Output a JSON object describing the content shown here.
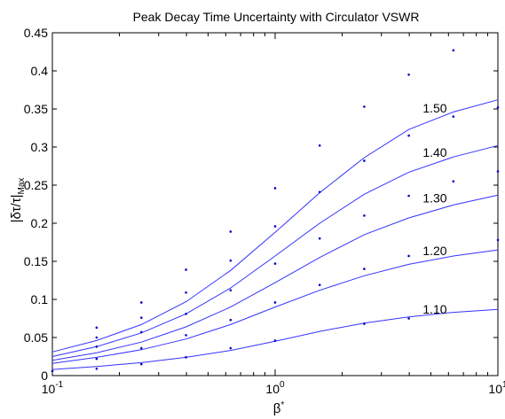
{
  "chart_data": {
    "type": "line",
    "title": "Peak Decay Time Uncertainty with Circulator VSWR",
    "xlabel": "β",
    "xlabel_sup": "*",
    "ylabel": "|δτ/τ|",
    "ylabel_sub": "Max",
    "x_scale": "log",
    "xlim": [
      0.1,
      10
    ],
    "ylim": [
      0,
      0.45
    ],
    "grid": false,
    "x_ticks": [
      {
        "value": 0.1,
        "base": "10",
        "exp": "-1"
      },
      {
        "value": 1,
        "base": "10",
        "exp": "0"
      },
      {
        "value": 10,
        "base": "10",
        "exp": "1"
      }
    ],
    "y_ticks": [
      "0",
      "0.05",
      "0.1",
      "0.15",
      "0.2",
      "0.25",
      "0.3",
      "0.35",
      "0.4",
      "0.45"
    ],
    "line_color": "#3333ff",
    "marker_color": "#0000cc",
    "x": [
      0.1,
      0.158,
      0.251,
      0.398,
      0.631,
      1.0,
      1.585,
      2.512,
      3.981,
      6.31,
      10.0
    ],
    "series": [
      {
        "name": "1.10",
        "values": [
          0.008,
          0.012,
          0.017,
          0.024,
          0.033,
          0.045,
          0.058,
          0.069,
          0.077,
          0.083,
          0.087
        ]
      },
      {
        "name": "1.20",
        "values": [
          0.016,
          0.024,
          0.034,
          0.048,
          0.067,
          0.09,
          0.112,
          0.131,
          0.146,
          0.157,
          0.165
        ]
      },
      {
        "name": "1.30",
        "values": [
          0.02,
          0.03,
          0.044,
          0.064,
          0.09,
          0.122,
          0.155,
          0.185,
          0.207,
          0.224,
          0.237
        ]
      },
      {
        "name": "1.40",
        "values": [
          0.025,
          0.038,
          0.056,
          0.081,
          0.115,
          0.157,
          0.2,
          0.238,
          0.267,
          0.287,
          0.302
        ]
      },
      {
        "name": "1.50",
        "values": [
          0.031,
          0.046,
          0.067,
          0.097,
          0.138,
          0.188,
          0.24,
          0.286,
          0.323,
          0.346,
          0.362
        ]
      }
    ],
    "markers": [
      {
        "x": 0.1,
        "y": 0.006
      },
      {
        "x": 0.158,
        "y": 0.009
      },
      {
        "x": 0.251,
        "y": 0.015
      },
      {
        "x": 0.398,
        "y": 0.024
      },
      {
        "x": 0.631,
        "y": 0.036
      },
      {
        "x": 1.0,
        "y": 0.046
      },
      {
        "x": 2.512,
        "y": 0.068
      },
      {
        "x": 3.981,
        "y": 0.075
      },
      {
        "x": 0.158,
        "y": 0.022
      },
      {
        "x": 0.251,
        "y": 0.036
      },
      {
        "x": 0.398,
        "y": 0.053
      },
      {
        "x": 0.631,
        "y": 0.073
      },
      {
        "x": 1.0,
        "y": 0.096
      },
      {
        "x": 1.585,
        "y": 0.119
      },
      {
        "x": 2.512,
        "y": 0.14
      },
      {
        "x": 3.981,
        "y": 0.157
      },
      {
        "x": 10.0,
        "y": 0.178
      },
      {
        "x": 0.158,
        "y": 0.038
      },
      {
        "x": 0.251,
        "y": 0.057
      },
      {
        "x": 0.398,
        "y": 0.081
      },
      {
        "x": 0.631,
        "y": 0.112
      },
      {
        "x": 1.0,
        "y": 0.147
      },
      {
        "x": 1.585,
        "y": 0.18
      },
      {
        "x": 2.512,
        "y": 0.21
      },
      {
        "x": 3.981,
        "y": 0.236
      },
      {
        "x": 6.31,
        "y": 0.255
      },
      {
        "x": 10.0,
        "y": 0.268
      },
      {
        "x": 0.158,
        "y": 0.05
      },
      {
        "x": 0.251,
        "y": 0.076
      },
      {
        "x": 0.398,
        "y": 0.109
      },
      {
        "x": 0.631,
        "y": 0.151
      },
      {
        "x": 1.0,
        "y": 0.196
      },
      {
        "x": 1.585,
        "y": 0.241
      },
      {
        "x": 2.512,
        "y": 0.282
      },
      {
        "x": 3.981,
        "y": 0.315
      },
      {
        "x": 6.31,
        "y": 0.34
      },
      {
        "x": 10.0,
        "y": 0.352
      },
      {
        "x": 0.158,
        "y": 0.063
      },
      {
        "x": 0.251,
        "y": 0.096
      },
      {
        "x": 0.398,
        "y": 0.139
      },
      {
        "x": 0.631,
        "y": 0.189
      },
      {
        "x": 1.0,
        "y": 0.246
      },
      {
        "x": 1.585,
        "y": 0.302
      },
      {
        "x": 2.512,
        "y": 0.353
      },
      {
        "x": 3.981,
        "y": 0.395
      },
      {
        "x": 6.31,
        "y": 0.427
      }
    ],
    "curve_labels": [
      {
        "text": "1.50",
        "x": 4.6,
        "y": 0.351
      },
      {
        "text": "1.40",
        "x": 4.6,
        "y": 0.293
      },
      {
        "text": "1.30",
        "x": 4.6,
        "y": 0.233
      },
      {
        "text": "1.20",
        "x": 4.6,
        "y": 0.164
      },
      {
        "text": "1.10",
        "x": 4.6,
        "y": 0.087
      }
    ]
  }
}
